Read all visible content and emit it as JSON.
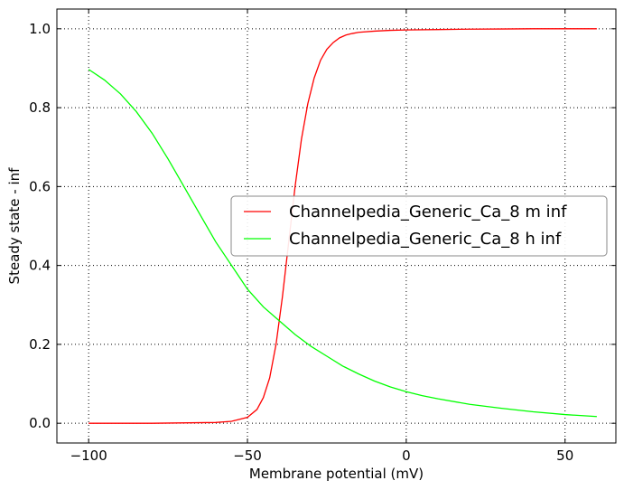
{
  "chart_data": {
    "type": "line",
    "xlabel": "Membrane potential (mV)",
    "ylabel": "Steady state - inf",
    "xlim": [
      -110,
      66
    ],
    "ylim": [
      -0.05,
      1.05
    ],
    "xticks": [
      -100,
      -50,
      0,
      50
    ],
    "yticks": [
      0.0,
      0.2,
      0.4,
      0.6,
      0.8,
      1.0
    ],
    "xtick_labels": [
      "−100",
      "−50",
      "0",
      "50"
    ],
    "ytick_labels": [
      "0.0",
      "0.2",
      "0.4",
      "0.6",
      "0.8",
      "1.0"
    ],
    "grid": true,
    "legend_position": "center-right",
    "series": [
      {
        "name": "Channelpedia_Generic_Ca_8 m inf",
        "color": "#ff0000",
        "x": [
          -100,
          -80,
          -60,
          -55,
          -50,
          -47,
          -45,
          -43,
          -41,
          -39,
          -37,
          -35,
          -33,
          -31,
          -29,
          -27,
          -25,
          -23,
          -21,
          -19,
          -17,
          -15,
          -10,
          -5,
          0,
          10,
          20,
          30,
          40,
          50,
          60
        ],
        "y": [
          0.0,
          0.0,
          0.002,
          0.005,
          0.015,
          0.035,
          0.065,
          0.115,
          0.2,
          0.32,
          0.46,
          0.6,
          0.72,
          0.81,
          0.875,
          0.92,
          0.948,
          0.965,
          0.977,
          0.984,
          0.988,
          0.991,
          0.994,
          0.996,
          0.997,
          0.998,
          0.999,
          0.9995,
          1.0,
          1.0,
          1.0
        ]
      },
      {
        "name": "Channelpedia_Generic_Ca_8 h inf",
        "color": "#00ff00",
        "x": [
          -100,
          -95,
          -90,
          -85,
          -80,
          -75,
          -70,
          -65,
          -60,
          -55,
          -50,
          -45,
          -40,
          -35,
          -30,
          -25,
          -20,
          -15,
          -10,
          -5,
          0,
          5,
          10,
          20,
          30,
          40,
          50,
          60
        ],
        "y": [
          0.897,
          0.87,
          0.835,
          0.79,
          0.735,
          0.67,
          0.6,
          0.53,
          0.46,
          0.4,
          0.34,
          0.295,
          0.26,
          0.225,
          0.195,
          0.17,
          0.145,
          0.125,
          0.107,
          0.092,
          0.08,
          0.07,
          0.062,
          0.048,
          0.038,
          0.029,
          0.022,
          0.017
        ]
      }
    ]
  }
}
